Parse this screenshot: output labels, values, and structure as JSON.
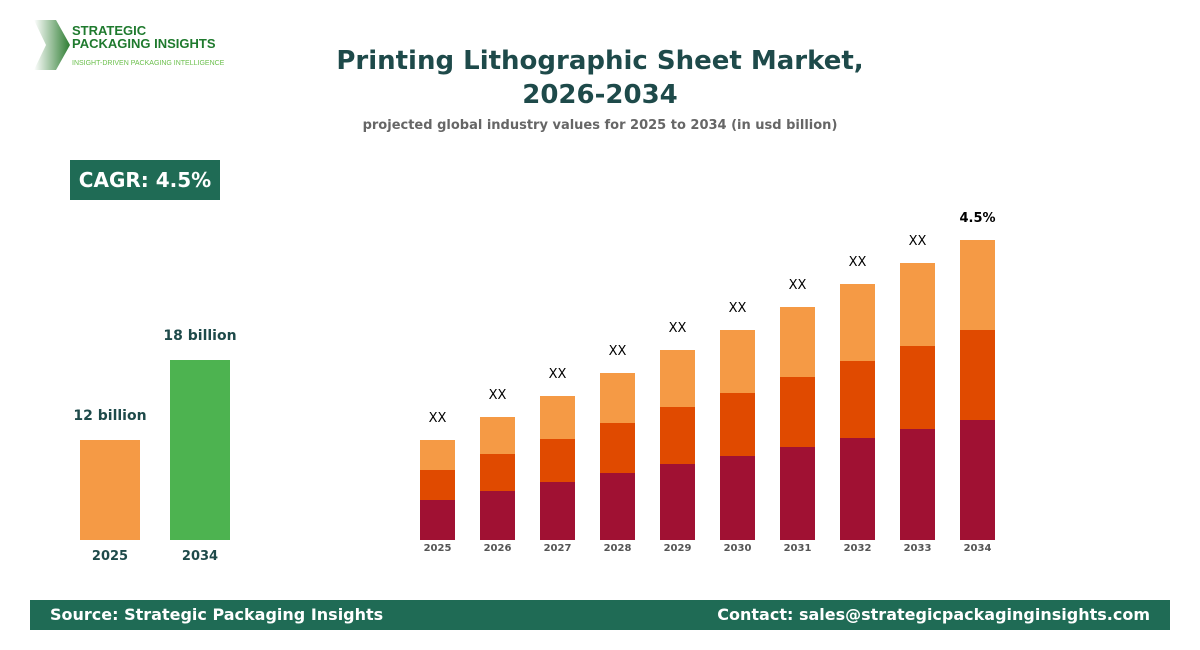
{
  "logo": {
    "line1": "STRATEGIC",
    "line2": "PACKAGING INSIGHTS",
    "tagline": "INSIGHT-DRIVEN PACKAGING INTELLIGENCE"
  },
  "header": {
    "title_line1": "Printing Lithographic Sheet Market,",
    "title_line2": "2026-2034",
    "subtitle": "projected global industry values for 2025 to 2034 (in usd billion)"
  },
  "cagr": "CAGR: 4.5%",
  "footer": {
    "source": "Source: Strategic Packaging Insights",
    "contact": "Contact: sales@strategicpackaginginsights.com"
  },
  "chart_data": [
    {
      "type": "bar",
      "categories": [
        "2025",
        "2034"
      ],
      "values": [
        12,
        18
      ],
      "data_labels": [
        "12 billion",
        "18 billion"
      ],
      "colors": [
        "#f59a45",
        "#4db350"
      ]
    },
    {
      "type": "bar",
      "stacked": true,
      "categories": [
        "2025",
        "2026",
        "2027",
        "2028",
        "2029",
        "2030",
        "2031",
        "2032",
        "2033",
        "2034"
      ],
      "series": [
        {
          "values": [
            40,
            49,
            58,
            67,
            76,
            84,
            93,
            102,
            111,
            120
          ],
          "color": "#a01133"
        },
        {
          "values": [
            30,
            37,
            43,
            50,
            57,
            63,
            70,
            77,
            83,
            90
          ],
          "color": "#e04a00"
        },
        {
          "values": [
            30,
            37,
            43,
            50,
            57,
            63,
            70,
            77,
            83,
            90
          ],
          "color": "#f59a45"
        }
      ],
      "data_labels": [
        "XX",
        "XX",
        "XX",
        "XX",
        "XX",
        "XX",
        "XX",
        "XX",
        "XX",
        "4.5%"
      ]
    }
  ]
}
